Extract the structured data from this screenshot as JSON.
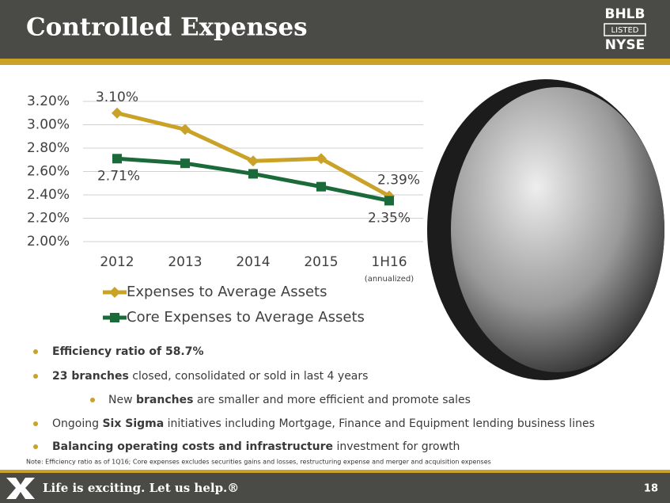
{
  "header": {
    "title": "Controlled Expenses",
    "logo": [
      "BHLB",
      "LISTED",
      "NYSE"
    ]
  },
  "chart_data": {
    "type": "line",
    "categories": [
      "2012",
      "2013",
      "2014",
      "2015",
      "1H16"
    ],
    "category_notes": [
      null,
      null,
      null,
      null,
      "(annualized)"
    ],
    "series": [
      {
        "name": "Expenses to Average Assets",
        "color": "#c9a227",
        "marker": "diamond",
        "values": [
          3.1,
          2.96,
          2.69,
          2.71,
          2.39
        ],
        "value_labels": [
          "3.10%",
          null,
          null,
          null,
          "2.39%"
        ]
      },
      {
        "name": "Core Expenses to Average Assets",
        "color": "#1b6b3a",
        "marker": "square",
        "values": [
          2.71,
          2.67,
          2.58,
          2.47,
          2.35
        ],
        "value_labels": [
          "2.71%",
          null,
          null,
          null,
          "2.35%"
        ]
      }
    ],
    "ylim": [
      2.0,
      3.2
    ],
    "yticks": [
      {
        "value": 2.0,
        "label": "2.00%"
      },
      {
        "value": 2.2,
        "label": "2.20%"
      },
      {
        "value": 2.4,
        "label": "2.40%"
      },
      {
        "value": 2.6,
        "label": "2.60%"
      },
      {
        "value": 2.8,
        "label": "2.80%"
      },
      {
        "value": 3.0,
        "label": "3.00%"
      },
      {
        "value": 3.2,
        "label": "3.20%"
      }
    ],
    "grid": true,
    "legend": "bottom"
  },
  "bullets": [
    {
      "level": 1,
      "segments": [
        {
          "text": "Efficiency ratio of 58.7%",
          "bold": true
        }
      ]
    },
    {
      "level": 1,
      "segments": [
        {
          "text": "23 branches",
          "bold": true
        },
        {
          "text": " closed, consolidated or sold in last 4 years",
          "bold": false
        }
      ]
    },
    {
      "level": 2,
      "segments": [
        {
          "text": "New ",
          "bold": false
        },
        {
          "text": "branches",
          "bold": true
        },
        {
          "text": " are smaller and more efficient and promote sales",
          "bold": false
        }
      ]
    },
    {
      "level": 1,
      "segments": [
        {
          "text": "Ongoing ",
          "bold": false
        },
        {
          "text": "Six Sigma",
          "bold": true
        },
        {
          "text": " initiatives including Mortgage, Finance and Equipment lending business lines",
          "bold": false
        }
      ]
    },
    {
      "level": 1,
      "segments": [
        {
          "text": "Balancing operating costs and infrastructure",
          "bold": true
        },
        {
          "text": " investment for growth",
          "bold": false
        }
      ]
    }
  ],
  "note": "Note:   Efficiency ratio as of 1Q16; Core expenses excludes securities gains and losses, restructuring expense and merger and acquisition expenses",
  "footer": {
    "tagline": "Life is exciting. Let us help.®",
    "page": "18"
  }
}
